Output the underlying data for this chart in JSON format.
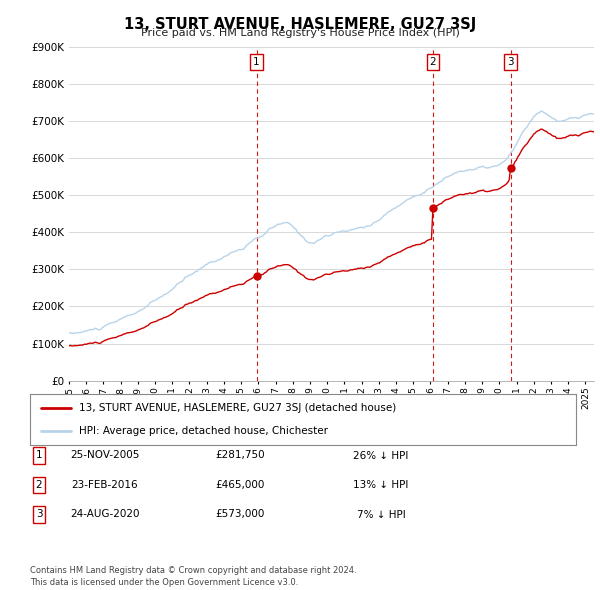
{
  "title": "13, STURT AVENUE, HASLEMERE, GU27 3SJ",
  "subtitle": "Price paid vs. HM Land Registry's House Price Index (HPI)",
  "ylim": [
    0,
    900000
  ],
  "yticks": [
    0,
    100000,
    200000,
    300000,
    400000,
    500000,
    600000,
    700000,
    800000,
    900000
  ],
  "ytick_labels": [
    "£0",
    "£100K",
    "£200K",
    "£300K",
    "£400K",
    "£500K",
    "£600K",
    "£700K",
    "£800K",
    "£900K"
  ],
  "hpi_color": "#b8d4ea",
  "price_color": "#cc0000",
  "sale_marker_color": "#cc0000",
  "vline_color": "#cc0000",
  "background_color": "#ffffff",
  "grid_color": "#d8d8d8",
  "sale_dates": [
    2005.9,
    2016.15,
    2020.65
  ],
  "sale_prices": [
    281750,
    465000,
    573000
  ],
  "sale_labels": [
    "1",
    "2",
    "3"
  ],
  "legend_price_label": "13, STURT AVENUE, HASLEMERE, GU27 3SJ (detached house)",
  "legend_hpi_label": "HPI: Average price, detached house, Chichester",
  "table_rows": [
    [
      "1",
      "25-NOV-2005",
      "£281,750",
      "26% ↓ HPI"
    ],
    [
      "2",
      "23-FEB-2016",
      "£465,000",
      "13% ↓ HPI"
    ],
    [
      "3",
      "24-AUG-2020",
      "£573,000",
      "7% ↓ HPI"
    ]
  ],
  "footnote": "Contains HM Land Registry data © Crown copyright and database right 2024.\nThis data is licensed under the Open Government Licence v3.0.",
  "xstart": 1995.0,
  "xend": 2025.5
}
